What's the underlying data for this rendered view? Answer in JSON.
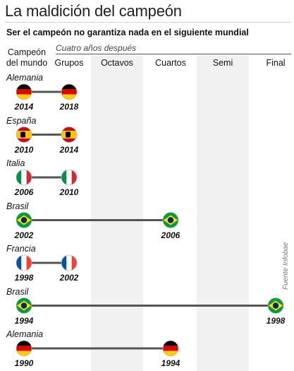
{
  "title": "La maldición del campeón",
  "subtitle": "Ser el campeón no garantiza nada en el siguiente mundial",
  "after_label": "Cuatro años después",
  "first_column": [
    "Campeón",
    "del mundo"
  ],
  "source": "Fuente Infobae",
  "chart_data": {
    "type": "table",
    "title": "La maldición del campeón",
    "subtitle": "Ser el campeón no garantiza nada en el siguiente mundial",
    "stages": [
      "Grupos",
      "Octavos",
      "Cuartos",
      "Semi",
      "Final"
    ],
    "rows": [
      {
        "country": "Alemania",
        "champion_year": "2014",
        "next_year": "2018",
        "stage": "Grupos",
        "flag": "germany"
      },
      {
        "country": "España",
        "champion_year": "2010",
        "next_year": "2014",
        "stage": "Grupos",
        "flag": "spain"
      },
      {
        "country": "Italia",
        "champion_year": "2006",
        "next_year": "2010",
        "stage": "Grupos",
        "flag": "italy"
      },
      {
        "country": "Brasil",
        "champion_year": "2002",
        "next_year": "2006",
        "stage": "Cuartos",
        "flag": "brazil"
      },
      {
        "country": "Francia",
        "champion_year": "1998",
        "next_year": "2002",
        "stage": "Grupos",
        "flag": "france"
      },
      {
        "country": "Brasil",
        "champion_year": "1994",
        "next_year": "1998",
        "stage": "Final",
        "flag": "brazil"
      },
      {
        "country": "Alemania",
        "champion_year": "1990",
        "next_year": "1994",
        "stage": "Cuartos",
        "flag": "germany"
      }
    ],
    "colors": {
      "band": "#f1f1f1",
      "connector": "#555555",
      "germany": [
        "#000000",
        "#dd0000",
        "#ffce00"
      ],
      "spain": [
        "#c60b1e",
        "#ffc400"
      ],
      "italy": [
        "#009246",
        "#ffffff",
        "#ce2b37"
      ],
      "brazil": [
        "#009c3b",
        "#ffdf00",
        "#002776"
      ],
      "france": [
        "#0055a4",
        "#ffffff",
        "#ef4135"
      ]
    }
  }
}
